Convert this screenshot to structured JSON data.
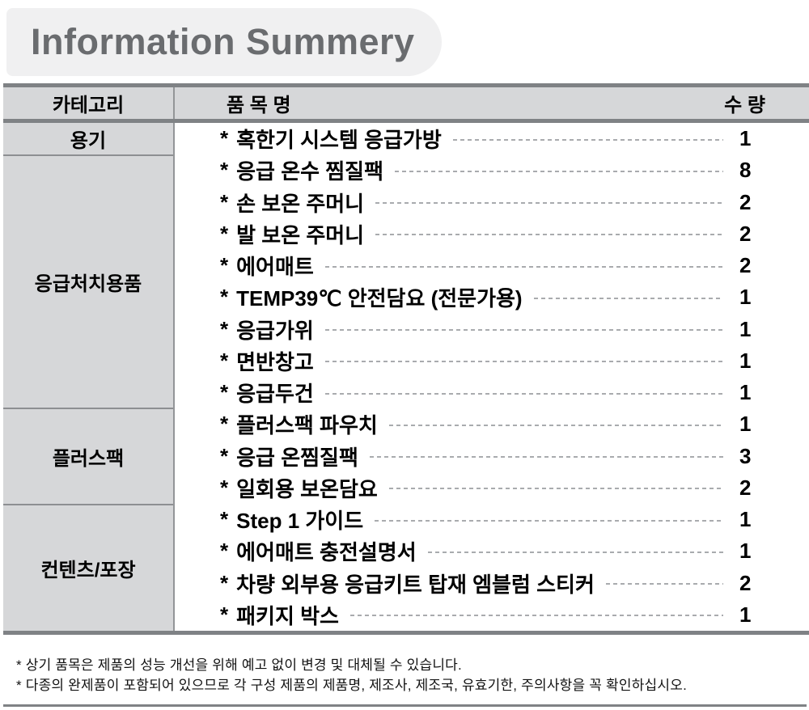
{
  "title": "Information Summery",
  "table": {
    "bullet": "*",
    "headers": {
      "category": "카테고리",
      "item": "품 목 명",
      "qty": "수 량"
    },
    "groups": [
      {
        "category": "용기",
        "items": [
          {
            "name": "혹한기 시스템 응급가방",
            "qty": "1"
          }
        ]
      },
      {
        "category": "응급처치용품",
        "items": [
          {
            "name": "응급 온수 찜질팩",
            "qty": "8"
          },
          {
            "name": "손 보온 주머니",
            "qty": "2"
          },
          {
            "name": "발 보온 주머니",
            "qty": "2"
          },
          {
            "name": "에어매트",
            "qty": "2"
          },
          {
            "name": "TEMP39℃ 안전담요 (전문가용)",
            "qty": "1"
          },
          {
            "name": "응급가위",
            "qty": "1"
          },
          {
            "name": "면반창고",
            "qty": "1"
          },
          {
            "name": "응급두건",
            "qty": "1"
          }
        ]
      },
      {
        "category": "플러스팩",
        "items": [
          {
            "name": "플러스팩 파우치",
            "qty": "1"
          },
          {
            "name": "응급 온찜질팩",
            "qty": "3"
          },
          {
            "name": "일회용 보온담요",
            "qty": "2"
          }
        ]
      },
      {
        "category": "컨텐츠/포장",
        "items": [
          {
            "name": "Step 1 가이드",
            "qty": "1"
          },
          {
            "name": "에어매트 충전설명서",
            "qty": "1"
          },
          {
            "name": "차량 외부용 응급키트 탑재 엠블럼 스티커",
            "qty": "2"
          },
          {
            "name": "패키지 박스",
            "qty": "1"
          }
        ]
      }
    ]
  },
  "footnotes": [
    "* 상기 품목은 제품의 성능 개선을 위해 예고 없이 변경 및 대체될 수 있습니다.",
    "* 다종의 완제품이 포함되어 있으므로 각 구성 제품의 제품명, 제조사, 제조국, 유효기한, 주의사항을 꼭 확인하십시오."
  ],
  "colors": {
    "title_text": "#6a6c6f",
    "title_bg": "#f0f0f1",
    "cell_bg": "#d6d7d9",
    "thick_rule": "#7f8285",
    "thin_rule": "#8d8f92",
    "leader_dash": "#a9abae"
  }
}
